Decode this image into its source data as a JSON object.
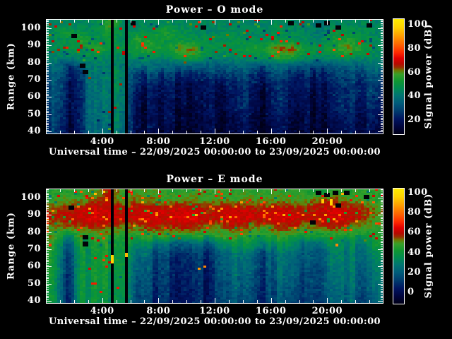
{
  "style": {
    "background": "#000000",
    "text_color": "#ffffff",
    "axis_color": "#ffffff",
    "colormap": [
      [
        0.0,
        "#000018"
      ],
      [
        0.06,
        "#00043c"
      ],
      [
        0.13,
        "#001460"
      ],
      [
        0.2,
        "#003c6e"
      ],
      [
        0.27,
        "#005c7a"
      ],
      [
        0.34,
        "#007670"
      ],
      [
        0.4,
        "#008c50"
      ],
      [
        0.46,
        "#0f9632"
      ],
      [
        0.52,
        "#37a028"
      ],
      [
        0.555,
        "#6e7800"
      ],
      [
        0.58,
        "#963200"
      ],
      [
        0.61,
        "#b40a00"
      ],
      [
        0.66,
        "#e10000"
      ],
      [
        0.71,
        "#ff2800"
      ],
      [
        0.78,
        "#ff6400"
      ],
      [
        0.86,
        "#ffa000"
      ],
      [
        0.93,
        "#ffd200"
      ],
      [
        1.0,
        "#ffeb00"
      ]
    ]
  },
  "chart_data": [
    {
      "type": "heatmap",
      "title": "Power – O mode",
      "xlabel": "Universal time – 22/09/2025 00:00:00 to 23/09/2025 00:00:00",
      "ylabel": "Range (km)",
      "colorbar_label": "Signal power (dB)",
      "y_ticks_km": [
        40,
        50,
        60,
        70,
        80,
        90,
        100
      ],
      "x_tick_labels": [
        {
          "hour": 4,
          "label": "4:00"
        },
        {
          "hour": 8,
          "label": "8:00"
        },
        {
          "hour": 12,
          "label": "12:00"
        },
        {
          "hour": 16,
          "label": "16:00"
        },
        {
          "hour": 20,
          "label": "20:00"
        }
      ],
      "colorbar_ticks_dB": [
        20,
        40,
        60,
        80,
        100
      ],
      "value_range_dB": {
        "min": 8,
        "max": 105
      },
      "y_range_km": [
        38.4,
        105.4
      ],
      "x_range_hours": [
        0,
        24
      ],
      "time_hours": [
        0.5,
        1.5,
        2.5,
        3.5,
        4.5,
        5.5,
        6.5,
        7.5,
        8.5,
        9.5,
        10.5,
        11.5,
        12.5,
        13.5,
        14.5,
        15.5,
        16.5,
        17.5,
        18.5,
        19.5,
        20.5,
        21.5,
        22.5,
        23.5
      ],
      "range_bins_km": [
        103,
        98,
        93,
        88,
        83,
        78,
        73,
        68,
        63,
        58,
        53,
        48,
        43,
        39
      ],
      "values_dB": [
        [
          44,
          45,
          44,
          46,
          58,
          46,
          44,
          46,
          44,
          45,
          46,
          44,
          45,
          44,
          45,
          44,
          46,
          45,
          44,
          42,
          44,
          44,
          45,
          44
        ],
        [
          46,
          52,
          48,
          46,
          55,
          46,
          48,
          46,
          56,
          48,
          46,
          44,
          46,
          46,
          45,
          44,
          48,
          46,
          44,
          40,
          50,
          48,
          48,
          44
        ],
        [
          46,
          48,
          56,
          48,
          50,
          46,
          56,
          54,
          50,
          50,
          48,
          48,
          46,
          48,
          48,
          46,
          50,
          48,
          46,
          44,
          52,
          54,
          50,
          46
        ],
        [
          46,
          48,
          48,
          56,
          50,
          48,
          54,
          56,
          50,
          62,
          62,
          50,
          48,
          50,
          52,
          54,
          64,
          63,
          52,
          48,
          54,
          62,
          52,
          46
        ],
        [
          44,
          42,
          44,
          46,
          46,
          44,
          46,
          48,
          46,
          52,
          54,
          46,
          44,
          46,
          46,
          48,
          56,
          54,
          46,
          44,
          46,
          48,
          46,
          44
        ],
        [
          40,
          26,
          36,
          42,
          42,
          40,
          38,
          36,
          34,
          34,
          34,
          32,
          34,
          36,
          34,
          34,
          34,
          36,
          32,
          30,
          34,
          36,
          34,
          42
        ],
        [
          34,
          22,
          30,
          44,
          44,
          42,
          28,
          26,
          24,
          24,
          24,
          22,
          28,
          30,
          26,
          24,
          26,
          28,
          24,
          22,
          28,
          30,
          28,
          34
        ],
        [
          32,
          19,
          28,
          42,
          42,
          40,
          24,
          20,
          18,
          18,
          18,
          16,
          20,
          24,
          22,
          18,
          22,
          24,
          20,
          18,
          24,
          26,
          24,
          28
        ],
        [
          32,
          18,
          26,
          42,
          42,
          40,
          20,
          17,
          16,
          16,
          16,
          15,
          17,
          22,
          20,
          16,
          20,
          22,
          18,
          16,
          22,
          26,
          22,
          26
        ],
        [
          32,
          17,
          26,
          42,
          41,
          40,
          18,
          16,
          15,
          15,
          15,
          14,
          16,
          22,
          20,
          15,
          20,
          22,
          17,
          15,
          22,
          26,
          20,
          24
        ],
        [
          30,
          16,
          26,
          42,
          40,
          39,
          17,
          15,
          14,
          14,
          14,
          14,
          15,
          20,
          18,
          14,
          18,
          20,
          16,
          14,
          20,
          24,
          18,
          22
        ],
        [
          30,
          15,
          26,
          41,
          40,
          38,
          16,
          14,
          13,
          13,
          13,
          13,
          14,
          18,
          16,
          13,
          16,
          18,
          15,
          13,
          18,
          22,
          16,
          20
        ],
        [
          28,
          14,
          26,
          40,
          39,
          38,
          15,
          13,
          12,
          12,
          12,
          12,
          13,
          16,
          15,
          12,
          15,
          16,
          14,
          12,
          16,
          20,
          15,
          18
        ],
        [
          28,
          14,
          25,
          40,
          38,
          37,
          14,
          12,
          12,
          12,
          12,
          12,
          12,
          15,
          14,
          12,
          14,
          15,
          13,
          12,
          15,
          18,
          14,
          17
        ]
      ],
      "data_gap_hours": [
        [
          4.74,
          4.82
        ],
        [
          5.62,
          5.7
        ]
      ],
      "black_patches": [
        {
          "t": 1.8,
          "r": 96
        },
        {
          "t": 2.55,
          "r": 79
        },
        {
          "t": 2.6,
          "r": 75
        },
        {
          "t": 6.1,
          "r": 103
        },
        {
          "t": 11.2,
          "r": 101
        },
        {
          "t": 17.3,
          "r": 103
        },
        {
          "t": 19.4,
          "r": 102
        },
        {
          "t": 19.9,
          "r": 104
        },
        {
          "t": 20.6,
          "r": 101
        },
        {
          "t": 22.9,
          "r": 102
        }
      ],
      "bright_patches": []
    },
    {
      "type": "heatmap",
      "title": "Power – E mode",
      "xlabel": "Universal time – 22/09/2025 00:00:00 to 23/09/2025 00:00:00",
      "ylabel": "Range (km)",
      "colorbar_label": "Signal power (dB)",
      "y_ticks_km": [
        40,
        50,
        60,
        70,
        80,
        90,
        100
      ],
      "x_tick_labels": [
        {
          "hour": 4,
          "label": "4:00"
        },
        {
          "hour": 8,
          "label": "8:00"
        },
        {
          "hour": 12,
          "label": "12:00"
        },
        {
          "hour": 16,
          "label": "16:00"
        },
        {
          "hour": 20,
          "label": "20:00"
        }
      ],
      "colorbar_ticks_dB": [
        0,
        20,
        40,
        60,
        80,
        100
      ],
      "value_range_dB": {
        "min": -11,
        "max": 104
      },
      "y_range_km": [
        38.4,
        105.4
      ],
      "x_range_hours": [
        0,
        24
      ],
      "time_hours": [
        0.5,
        1.5,
        2.5,
        3.5,
        4.5,
        5.5,
        6.5,
        7.5,
        8.5,
        9.5,
        10.5,
        11.5,
        12.5,
        13.5,
        14.5,
        15.5,
        16.5,
        17.5,
        18.5,
        19.5,
        20.5,
        21.5,
        22.5,
        23.5
      ],
      "range_bins_km": [
        103,
        98,
        93,
        88,
        83,
        78,
        73,
        68,
        63,
        58,
        53,
        48,
        43,
        39
      ],
      "values_dB": [
        [
          45,
          46,
          46,
          50,
          58,
          48,
          48,
          50,
          46,
          46,
          48,
          46,
          48,
          46,
          48,
          46,
          48,
          46,
          46,
          42,
          46,
          46,
          46,
          45
        ],
        [
          48,
          50,
          52,
          56,
          58,
          50,
          54,
          52,
          50,
          52,
          52,
          50,
          52,
          50,
          52,
          50,
          52,
          50,
          50,
          55,
          58,
          52,
          50,
          46
        ],
        [
          56,
          58,
          60,
          63,
          61,
          58,
          60,
          62,
          60,
          62,
          62,
          58,
          60,
          62,
          60,
          58,
          62,
          60,
          58,
          60,
          62,
          60,
          58,
          52
        ],
        [
          58,
          60,
          62,
          64,
          62,
          60,
          62,
          64,
          62,
          64,
          64,
          60,
          62,
          64,
          62,
          60,
          64,
          62,
          60,
          62,
          64,
          62,
          58,
          50
        ],
        [
          52,
          54,
          56,
          58,
          56,
          52,
          54,
          58,
          56,
          58,
          58,
          52,
          54,
          58,
          54,
          50,
          58,
          56,
          52,
          54,
          58,
          54,
          50,
          46
        ],
        [
          46,
          36,
          46,
          48,
          48,
          46,
          46,
          48,
          46,
          48,
          46,
          44,
          46,
          48,
          46,
          44,
          48,
          46,
          42,
          40,
          44,
          44,
          42,
          44
        ],
        [
          40,
          22,
          38,
          44,
          44,
          42,
          36,
          26,
          22,
          22,
          22,
          20,
          26,
          40,
          40,
          28,
          34,
          38,
          22,
          19,
          32,
          34,
          32,
          40
        ],
        [
          38,
          16,
          34,
          42,
          42,
          40,
          28,
          18,
          13,
          13,
          13,
          11,
          16,
          30,
          28,
          14,
          26,
          30,
          18,
          13,
          28,
          30,
          28,
          34
        ],
        [
          38,
          13,
          34,
          42,
          42,
          40,
          24,
          14,
          10,
          10,
          10,
          9,
          14,
          26,
          24,
          12,
          24,
          26,
          16,
          11,
          26,
          30,
          26,
          30
        ],
        [
          37,
          11,
          34,
          42,
          41,
          40,
          22,
          12,
          9,
          9,
          9,
          8,
          12,
          25,
          23,
          10,
          23,
          25,
          14,
          9,
          25,
          29,
          24,
          28
        ],
        [
          36,
          10,
          34,
          42,
          40,
          39,
          20,
          11,
          8,
          8,
          8,
          7,
          11,
          23,
          21,
          9,
          21,
          23,
          12,
          8,
          23,
          27,
          22,
          26
        ],
        [
          36,
          9,
          34,
          41,
          40,
          38,
          18,
          10,
          7,
          7,
          7,
          6,
          10,
          21,
          19,
          8,
          19,
          21,
          11,
          7,
          21,
          25,
          20,
          24
        ],
        [
          35,
          8,
          34,
          40,
          39,
          38,
          17,
          9,
          6,
          6,
          6,
          6,
          9,
          19,
          17,
          7,
          17,
          19,
          10,
          6,
          19,
          23,
          18,
          22
        ],
        [
          35,
          8,
          33,
          40,
          38,
          37,
          16,
          8,
          6,
          6,
          6,
          6,
          8,
          18,
          16,
          6,
          16,
          18,
          9,
          6,
          18,
          22,
          17,
          21
        ]
      ],
      "data_gap_hours": [
        [
          4.74,
          4.82
        ],
        [
          5.62,
          5.7
        ]
      ],
      "black_patches": [
        {
          "t": 1.7,
          "r": 95
        },
        {
          "t": 2.6,
          "r": 78
        },
        {
          "t": 2.65,
          "r": 74
        },
        {
          "t": 18.9,
          "r": 86
        },
        {
          "t": 19.3,
          "r": 103
        },
        {
          "t": 19.9,
          "r": 102
        },
        {
          "t": 20.4,
          "r": 104
        },
        {
          "t": 20.6,
          "r": 96
        },
        {
          "t": 21.3,
          "r": 103
        },
        {
          "t": 22.6,
          "r": 101
        }
      ],
      "bright_patches": [
        {
          "t": 3.1,
          "r": 93,
          "dB": 88
        },
        {
          "t": 3.55,
          "r": 102,
          "dB": 92
        },
        {
          "t": 4.1,
          "r": 103,
          "dB": 95
        },
        {
          "t": 4.3,
          "r": 88,
          "dB": 84
        },
        {
          "t": 4.35,
          "r": 99,
          "dB": 90
        },
        {
          "t": 4.78,
          "r": 66,
          "dB": 96,
          "h_km": 5
        },
        {
          "t": 5.66,
          "r": 67,
          "dB": 92,
          "h_km": 2.5
        },
        {
          "t": 6.8,
          "r": 97,
          "dB": 90
        },
        {
          "t": 10.9,
          "r": 59,
          "dB": 86
        },
        {
          "t": 11.35,
          "r": 60,
          "dB": 84
        },
        {
          "t": 13.9,
          "r": 97,
          "dB": 86
        },
        {
          "t": 16.1,
          "r": 95,
          "dB": 88
        },
        {
          "t": 19.6,
          "r": 99,
          "dB": 95,
          "h_km": 3
        },
        {
          "t": 20.3,
          "r": 98,
          "dB": 97,
          "h_km": 4
        },
        {
          "t": 20.45,
          "r": 88,
          "dB": 92
        },
        {
          "t": 20.7,
          "r": 73,
          "dB": 84
        },
        {
          "t": 21.1,
          "r": 102,
          "dB": 90
        }
      ]
    }
  ]
}
